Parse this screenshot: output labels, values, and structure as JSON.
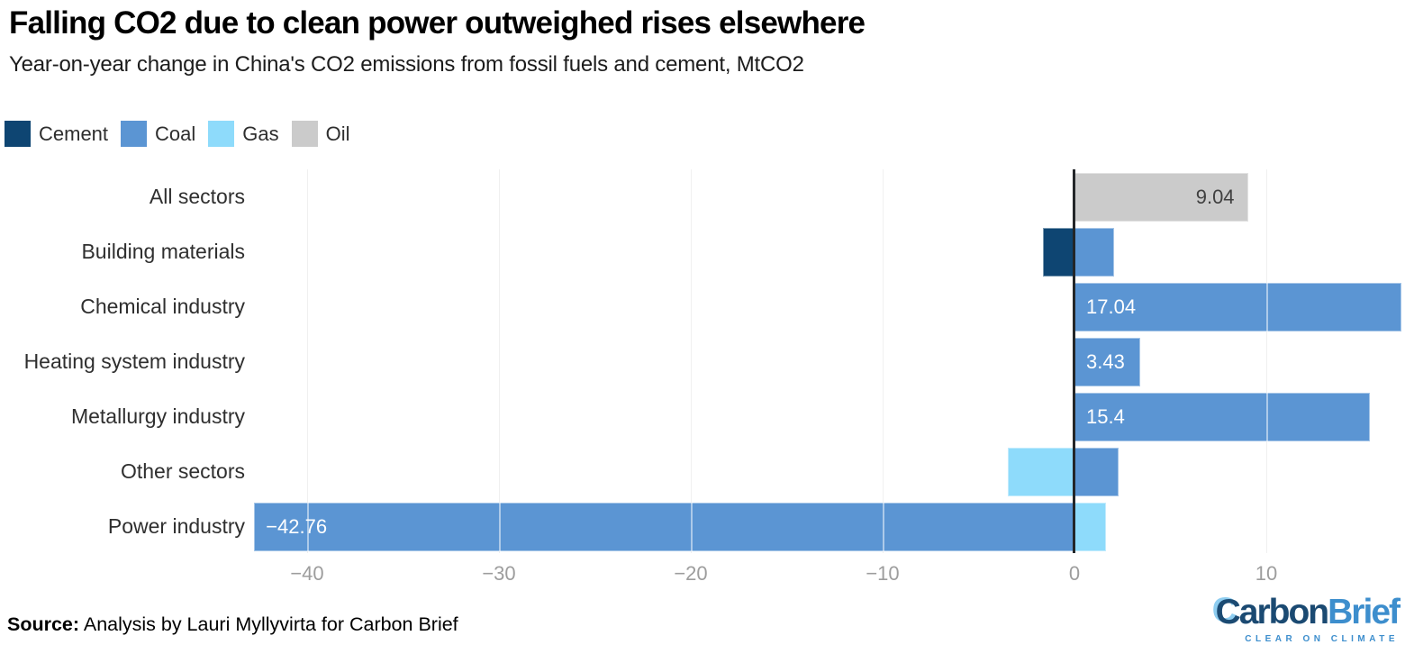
{
  "header": {
    "title": "Falling CO2 due to clean power outweighed rises elsewhere",
    "subtitle": "Year-on-year change in China's CO2 emissions from fossil fuels and cement, MtCO2"
  },
  "legend": [
    {
      "label": "Cement",
      "color": "#0e4572"
    },
    {
      "label": "Coal",
      "color": "#5b95d3"
    },
    {
      "label": "Gas",
      "color": "#8edbfb"
    },
    {
      "label": "Oil",
      "color": "#cbcbcb"
    }
  ],
  "chart_data": {
    "type": "bar",
    "orientation": "horizontal",
    "title": "Falling CO2 due to clean power outweighed rises elsewhere",
    "subtitle": "Year-on-year change in China's CO2 emissions from fossil fuels and cement, MtCO2",
    "unit": "MtCO2",
    "categories": [
      "All sectors",
      "Building materials",
      "Chemical industry",
      "Heating system industry",
      "Metallurgy industry",
      "Other sectors",
      "Power industry"
    ],
    "series": [
      {
        "name": "Cement",
        "values": [
          null,
          -1.65,
          null,
          null,
          null,
          null,
          null
        ]
      },
      {
        "name": "Coal",
        "values": [
          null,
          2.08,
          17.04,
          3.43,
          15.4,
          2.31,
          -42.76
        ]
      },
      {
        "name": "Gas",
        "values": [
          null,
          null,
          null,
          null,
          null,
          -3.49,
          1.66
        ]
      },
      {
        "name": "Oil",
        "values": [
          9.04,
          null,
          null,
          null,
          null,
          null,
          null
        ]
      }
    ],
    "bars": [
      {
        "row": 0,
        "series": "Oil",
        "value": 9.04,
        "label": "9.04",
        "label_style": "dark-right"
      },
      {
        "row": 1,
        "series": "Cement",
        "value": -1.65
      },
      {
        "row": 1,
        "series": "Coal",
        "value": 2.08
      },
      {
        "row": 2,
        "series": "Coal",
        "value": 17.04,
        "label": "17.04",
        "label_style": "white-left"
      },
      {
        "row": 3,
        "series": "Coal",
        "value": 3.43,
        "label": "3.43",
        "label_style": "white-left"
      },
      {
        "row": 4,
        "series": "Coal",
        "value": 15.4,
        "label": "15.4",
        "label_style": "white-left"
      },
      {
        "row": 5,
        "series": "Gas",
        "value": -3.49
      },
      {
        "row": 5,
        "series": "Coal",
        "value": 2.31
      },
      {
        "row": 6,
        "series": "Coal",
        "value": -42.76,
        "label": "−42.76",
        "label_style": "white-left"
      },
      {
        "row": 6,
        "series": "Gas",
        "value": 1.66
      }
    ],
    "xlim": [
      -43.0,
      17.1
    ],
    "xticks": [
      {
        "value": -40,
        "label": "−40"
      },
      {
        "value": -30,
        "label": "−30"
      },
      {
        "value": -20,
        "label": "−20"
      },
      {
        "value": -10,
        "label": "−10"
      },
      {
        "value": 0,
        "label": "0"
      },
      {
        "value": 10,
        "label": "10"
      }
    ],
    "grid": "vertical",
    "legend_position": "top-left",
    "zero_line_color": "#232629",
    "gridline_color": "#e0e0e0"
  },
  "footer": {
    "source_prefix": "Source:",
    "source_text": " Analysis by Lauri Myllyvirta for Carbon Brief"
  },
  "logo": {
    "carbon_first_letter": "C",
    "carbon_rest": "arbon",
    "brief": "Brief",
    "tagline": "CLEAR ON CLIMATE"
  }
}
